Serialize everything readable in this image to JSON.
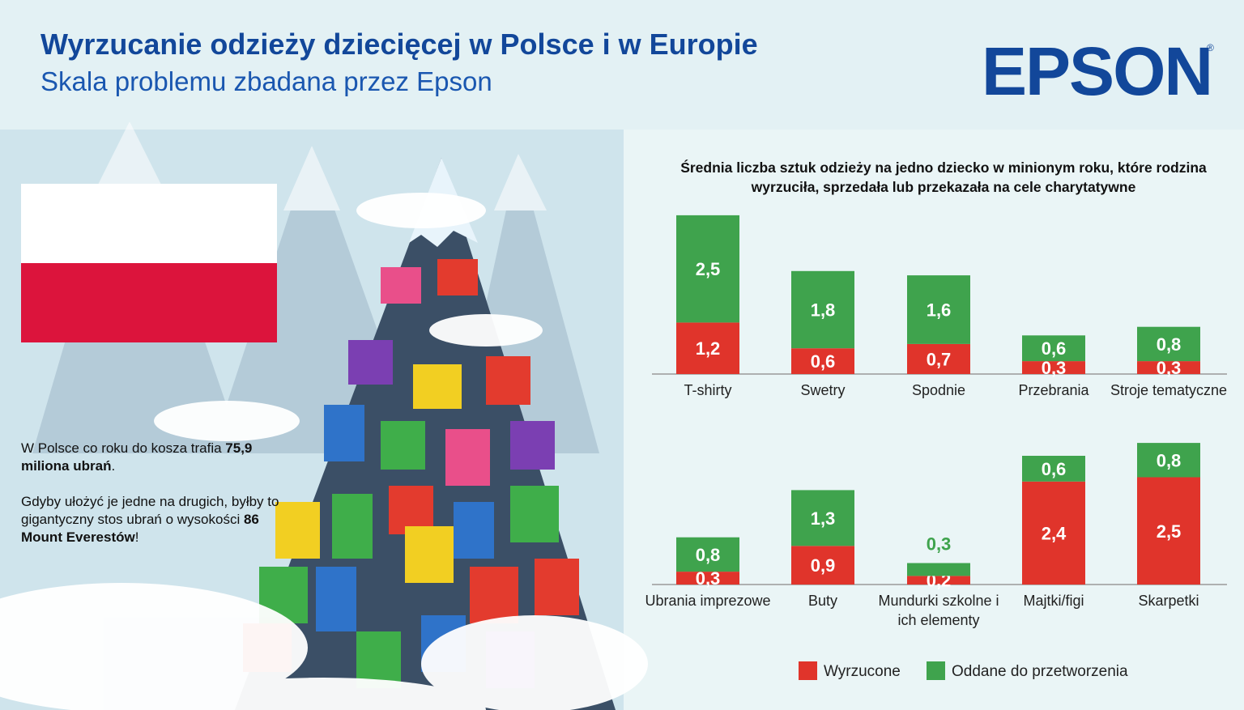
{
  "header": {
    "title": "Wyrzucanie odzieży dziecięcej w Polsce i w Europie",
    "subtitle": "Skala problemu zbadana przez Epson",
    "logo": "EPSON"
  },
  "story": {
    "p1_a": "W Polsce co roku do kosza trafia ",
    "p1_b": "75,9 miliona ubrań",
    "p1_c": ".",
    "p2_a": "Gdyby ułożyć je jedne na drugich, byłby to gigantyczny stos ubrań o wysokości ",
    "p2_b": "86 Mount Everestów",
    "p2_c": "!"
  },
  "chart_data": [
    {
      "type": "bar",
      "stacked": true,
      "title": "Średnia liczba sztuk odzieży na jedno dziecko w minionym roku, które rodzina wyrzuciła, sprzedała lub przekazała na cele charytatywne",
      "categories": [
        "T-shirty",
        "Swetry",
        "Spodnie",
        "Przebrania",
        "Stroje tematyczne"
      ],
      "series": [
        {
          "name": "Wyrzucone",
          "color": "#e0342b",
          "values": [
            1.2,
            0.6,
            0.7,
            0.3,
            0.3
          ],
          "value_labels": [
            "1,2",
            "0,6",
            "0,7",
            "0,3",
            "0,3"
          ]
        },
        {
          "name": "Oddane do przetworzenia",
          "color": "#3fa34d",
          "values": [
            2.5,
            1.8,
            1.6,
            0.6,
            0.8
          ],
          "value_labels": [
            "2,5",
            "1,8",
            "1,6",
            "0,6",
            "0,8"
          ]
        }
      ]
    },
    {
      "type": "bar",
      "stacked": true,
      "categories": [
        "Ubrania imprezowe",
        "Buty",
        "Mundurki szkolne i ich elementy",
        "Majtki/figi",
        "Skarpetki"
      ],
      "series": [
        {
          "name": "Wyrzucone",
          "color": "#e0342b",
          "values": [
            0.3,
            0.9,
            0.2,
            2.4,
            2.5
          ],
          "value_labels": [
            "0,3",
            "0,9",
            "0,2",
            "2,4",
            "2,5"
          ]
        },
        {
          "name": "Oddane do przetworzenia",
          "color": "#3fa34d",
          "values": [
            0.8,
            1.3,
            0.3,
            0.6,
            0.8
          ],
          "value_labels": [
            "0,8",
            "1,3",
            "0,3",
            "0,6",
            "0,8"
          ]
        }
      ]
    }
  ]
}
